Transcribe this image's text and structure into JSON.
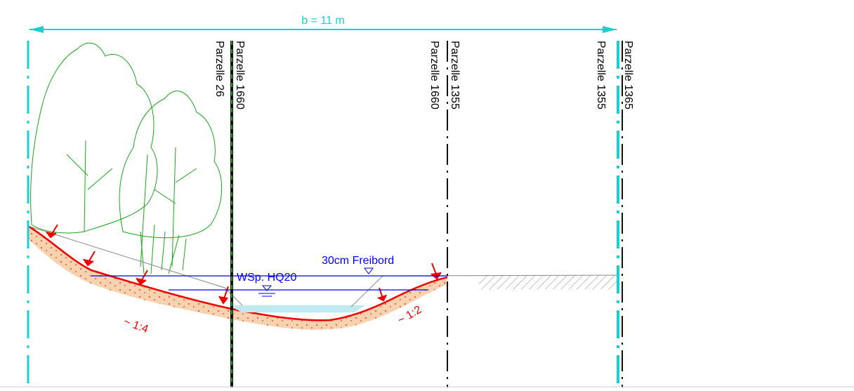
{
  "dimension": {
    "label": "b = 11 m"
  },
  "boundaries": [
    {
      "left": "Parzelle 26",
      "right": "Parzelle 1660"
    },
    {
      "left": "Parzelle 1660",
      "right": "Parzelle 1355"
    },
    {
      "left": "Parzelle 1355",
      "right": "Parzelle 1365"
    }
  ],
  "water": {
    "freeboard": "30cm Freibord",
    "level": "WSp. HQ20"
  },
  "slopes": {
    "left": "~ 1:4",
    "right": "~ 1:2"
  }
}
